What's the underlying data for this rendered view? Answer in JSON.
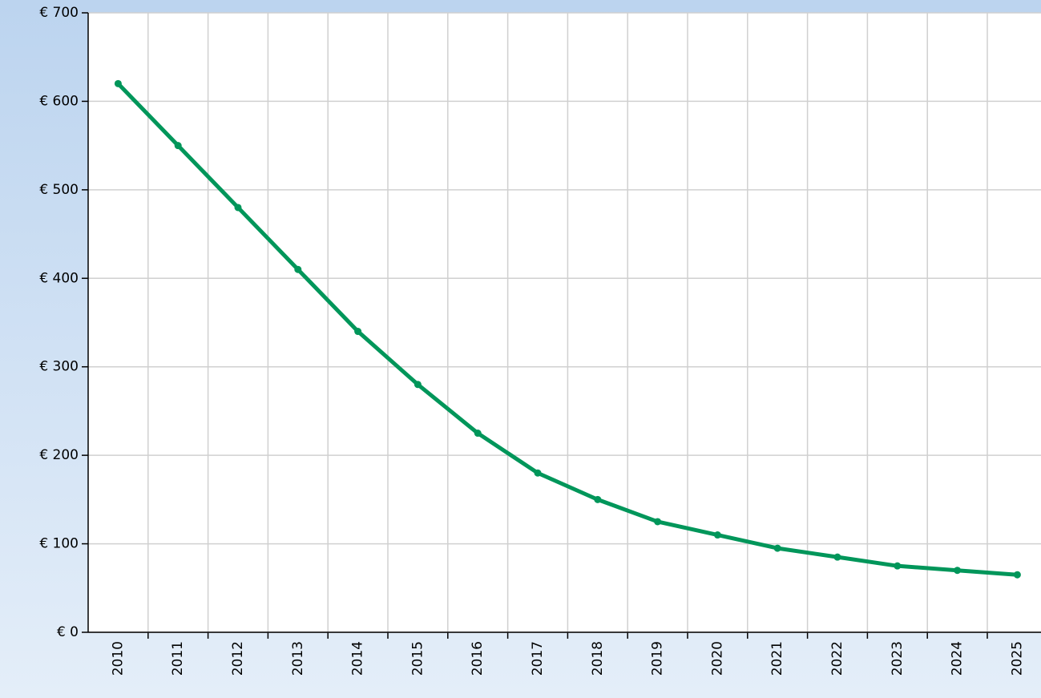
{
  "chart_data": {
    "type": "line",
    "categories": [
      "2010",
      "2011",
      "2012",
      "2013",
      "2014",
      "2015",
      "2016",
      "2017",
      "2018",
      "2019",
      "2020",
      "2021",
      "2022",
      "2023",
      "2024",
      "2025"
    ],
    "series": [
      {
        "name": "Series 1",
        "color": "#00965a",
        "values": [
          620,
          550,
          480,
          410,
          340,
          280,
          225,
          180,
          150,
          125,
          110,
          95,
          85,
          75,
          70,
          65
        ]
      }
    ],
    "ylim": [
      0,
      700
    ],
    "yticks": [
      {
        "value": 0,
        "label": "€ 0"
      },
      {
        "value": 100,
        "label": "€ 100"
      },
      {
        "value": 200,
        "label": "€ 200"
      },
      {
        "value": 300,
        "label": "€ 300"
      },
      {
        "value": 400,
        "label": "€ 400"
      },
      {
        "value": 500,
        "label": "€ 500"
      },
      {
        "value": 600,
        "label": "€ 600"
      },
      {
        "value": 700,
        "label": "€ 700"
      }
    ],
    "grid": true
  }
}
